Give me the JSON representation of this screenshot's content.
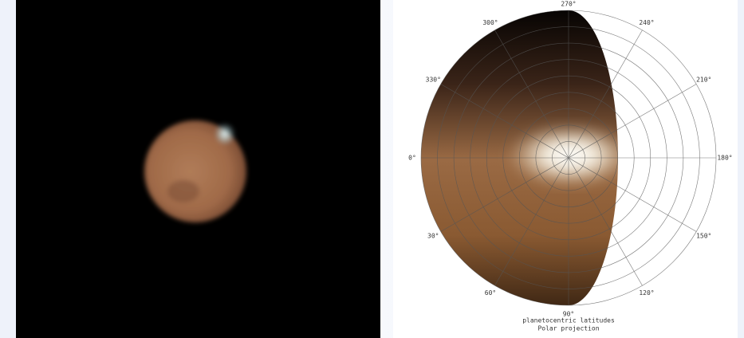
{
  "projection": {
    "angle_labels": [
      "270°",
      "300°",
      "240°",
      "330°",
      "210°",
      "0°",
      "180°",
      "30°",
      "150°",
      "60°",
      "120°",
      "90°"
    ],
    "caption": [
      "planetocentric latitudes",
      "Polar projection"
    ]
  }
}
